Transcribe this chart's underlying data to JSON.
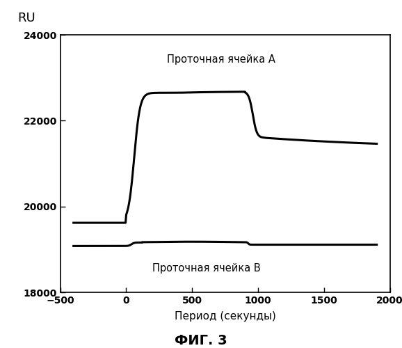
{
  "title_y_label": "RU",
  "xlabel": "Период (секунды)",
  "fig_title": "ФИГ. 3",
  "label_A": "Проточная ячейка А",
  "label_B": "Проточная ячейка B",
  "xlim": [
    -500,
    2000
  ],
  "ylim": [
    18000,
    24000
  ],
  "xticks": [
    -500,
    0,
    500,
    1000,
    1500,
    2000
  ],
  "yticks": [
    18000,
    20000,
    22000,
    24000
  ],
  "line_color": "#000000",
  "line_width": 2.2,
  "background_color": "#ffffff"
}
